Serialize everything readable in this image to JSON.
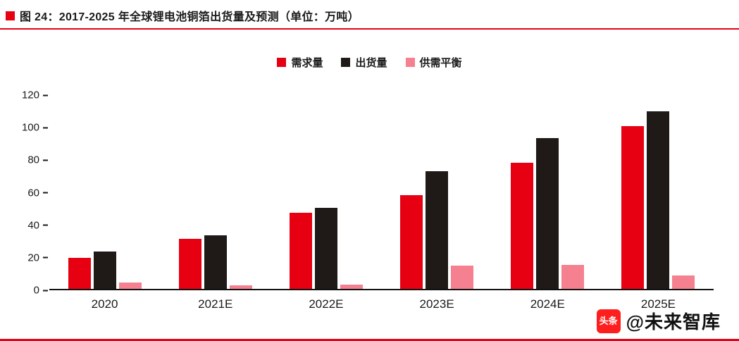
{
  "header": {
    "title": "图 24：2017-2025 年全球锂电池铜箔出货量及预测（单位：万吨）"
  },
  "chart_data": {
    "type": "bar",
    "title": "2017-2025 年全球锂电池铜箔出货量及预测（单位：万吨）",
    "categories": [
      "2020",
      "2021E",
      "2022E",
      "2023E",
      "2024E",
      "2025E"
    ],
    "series": [
      {
        "name": "需求量",
        "color": "#e60012",
        "values": [
          19,
          31,
          47,
          58,
          78,
          101
        ]
      },
      {
        "name": "出货量",
        "color": "#1f1a17",
        "values": [
          23,
          33,
          50,
          73,
          93.5,
          110
        ]
      },
      {
        "name": "供需平衡",
        "color": "#f5808f",
        "values": [
          4,
          2,
          2.5,
          14.5,
          15,
          8.5
        ]
      }
    ],
    "ylim": [
      0,
      120
    ],
    "yticks": [
      0,
      20,
      40,
      60,
      80,
      100,
      120
    ],
    "grid": false,
    "legend_position": "top"
  },
  "watermark": {
    "icon_text": "头条",
    "label": "@未来智库"
  },
  "colors": {
    "accent_red": "#e60012",
    "bar_black": "#1f1a17",
    "bar_pink": "#f5808f",
    "axis": "#1a1a1a"
  }
}
